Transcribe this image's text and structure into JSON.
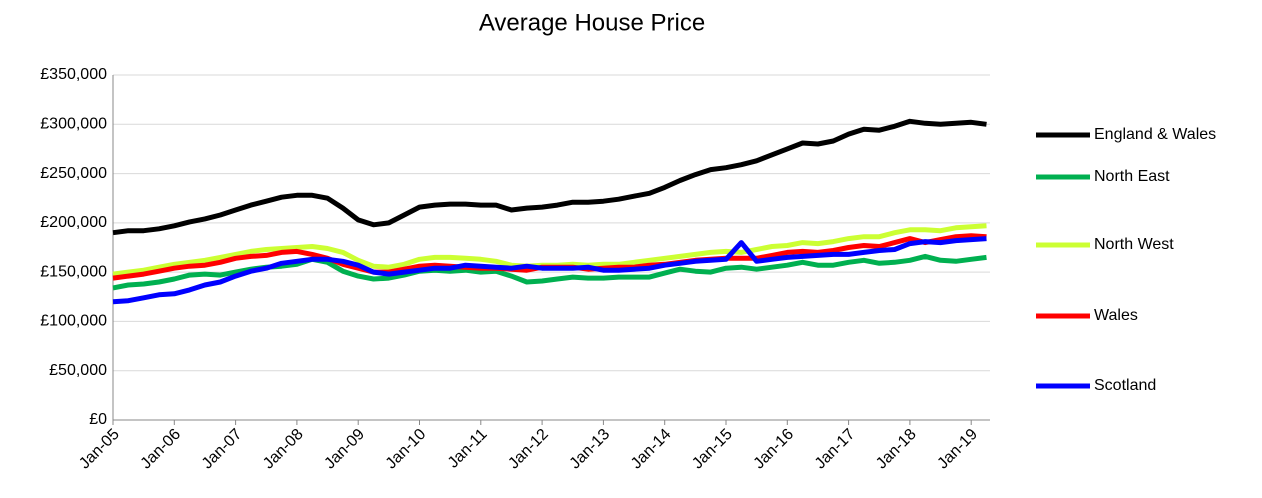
{
  "chart_data": {
    "type": "line",
    "title": "Average House Price",
    "categories": [
      "Jan-05",
      null,
      null,
      null,
      "Jan-06",
      null,
      null,
      null,
      "Jan-07",
      null,
      null,
      null,
      "Jan-08",
      null,
      null,
      null,
      "Jan-09",
      null,
      null,
      null,
      "Jan-10",
      null,
      null,
      null,
      "Jan-11",
      null,
      null,
      null,
      "Jan-12",
      null,
      null,
      null,
      "Jan-13",
      null,
      null,
      null,
      "Jan-14",
      null,
      null,
      null,
      "Jan-15",
      null,
      null,
      null,
      "Jan-16",
      null,
      null,
      null,
      "Jan-17",
      null,
      null,
      null,
      "Jan-18",
      null,
      null,
      null,
      "Jan-19",
      null
    ],
    "series": [
      {
        "name": "England & Wales",
        "color": "#000000",
        "values": [
          190000,
          192000,
          192000,
          194000,
          197000,
          201000,
          204000,
          208000,
          213000,
          218000,
          222000,
          226000,
          228000,
          228000,
          225000,
          215000,
          203000,
          198000,
          200000,
          208000,
          216000,
          218000,
          219000,
          219000,
          218000,
          218000,
          213000,
          215000,
          216000,
          218000,
          221000,
          221000,
          222000,
          224000,
          227000,
          230000,
          236000,
          243000,
          249000,
          254000,
          256000,
          259000,
          263000,
          269000,
          275000,
          281000,
          280000,
          283000,
          290000,
          295000,
          294000,
          298000,
          303000,
          301000,
          300000,
          301000,
          302000,
          300000
        ]
      },
      {
        "name": "North East",
        "color": "#00b050",
        "values": [
          134000,
          137000,
          138000,
          140000,
          143000,
          147000,
          148000,
          147000,
          150000,
          153000,
          155000,
          156000,
          158000,
          163000,
          160000,
          151000,
          146000,
          143000,
          144000,
          147000,
          151000,
          152000,
          151000,
          152000,
          150000,
          151000,
          146000,
          140000,
          141000,
          143000,
          145000,
          144000,
          144000,
          145000,
          145000,
          145000,
          149000,
          153000,
          151000,
          150000,
          154000,
          155000,
          153000,
          155000,
          157000,
          160000,
          157000,
          157000,
          160000,
          162000,
          159000,
          160000,
          162000,
          166000,
          162000,
          161000,
          163000,
          165000
        ]
      },
      {
        "name": "North West",
        "color": "#ccff33",
        "values": [
          148000,
          150000,
          152000,
          155000,
          158000,
          160000,
          162000,
          165000,
          168000,
          171000,
          173000,
          174000,
          175000,
          176000,
          174000,
          170000,
          162000,
          156000,
          155000,
          158000,
          163000,
          165000,
          165000,
          164000,
          163000,
          161000,
          157000,
          156000,
          157000,
          157000,
          158000,
          157000,
          158000,
          158000,
          160000,
          162000,
          164000,
          166000,
          168000,
          170000,
          171000,
          170000,
          173000,
          176000,
          177000,
          180000,
          179000,
          181000,
          184000,
          186000,
          186000,
          190000,
          193000,
          193000,
          192000,
          195000,
          196000,
          197000
        ]
      },
      {
        "name": "Wales",
        "color": "#ff0000",
        "values": [
          144000,
          146000,
          148000,
          151000,
          154000,
          156000,
          157000,
          160000,
          164000,
          166000,
          167000,
          170000,
          171000,
          168000,
          164000,
          158000,
          154000,
          150000,
          150000,
          153000,
          156000,
          157000,
          156000,
          155000,
          154000,
          154000,
          153000,
          152000,
          155000,
          155000,
          155000,
          153000,
          154000,
          155000,
          155000,
          157000,
          158000,
          160000,
          162000,
          163000,
          164000,
          164000,
          164000,
          167000,
          170000,
          171000,
          170000,
          172000,
          175000,
          177000,
          176000,
          180000,
          184000,
          180000,
          183000,
          186000,
          187000,
          186000
        ]
      },
      {
        "name": "Scotland",
        "color": "#0000ff",
        "values": [
          120000,
          121000,
          124000,
          127000,
          128000,
          132000,
          137000,
          140000,
          146000,
          151000,
          154000,
          159000,
          161000,
          163000,
          163000,
          161000,
          157000,
          150000,
          148000,
          150000,
          152000,
          154000,
          154000,
          157000,
          156000,
          155000,
          154000,
          156000,
          154000,
          154000,
          154000,
          155000,
          152000,
          152000,
          153000,
          154000,
          157000,
          159000,
          161000,
          162000,
          163000,
          180000,
          161000,
          163000,
          165000,
          166000,
          167000,
          168000,
          168000,
          170000,
          172000,
          173000,
          179000,
          181000,
          180000,
          182000,
          183000,
          184000
        ]
      }
    ],
    "ylim": [
      0,
      350000
    ],
    "yticks": [
      {
        "value": 0,
        "label": "£0"
      },
      {
        "value": 50000,
        "label": "£50,000"
      },
      {
        "value": 100000,
        "label": "£100,000"
      },
      {
        "value": 150000,
        "label": "£150,000"
      },
      {
        "value": 200000,
        "label": "£200,000"
      },
      {
        "value": 250000,
        "label": "£250,000"
      },
      {
        "value": 300000,
        "label": "£300,000"
      },
      {
        "value": 350000,
        "label": "£350,000"
      }
    ],
    "grid": true,
    "legend": "right"
  }
}
